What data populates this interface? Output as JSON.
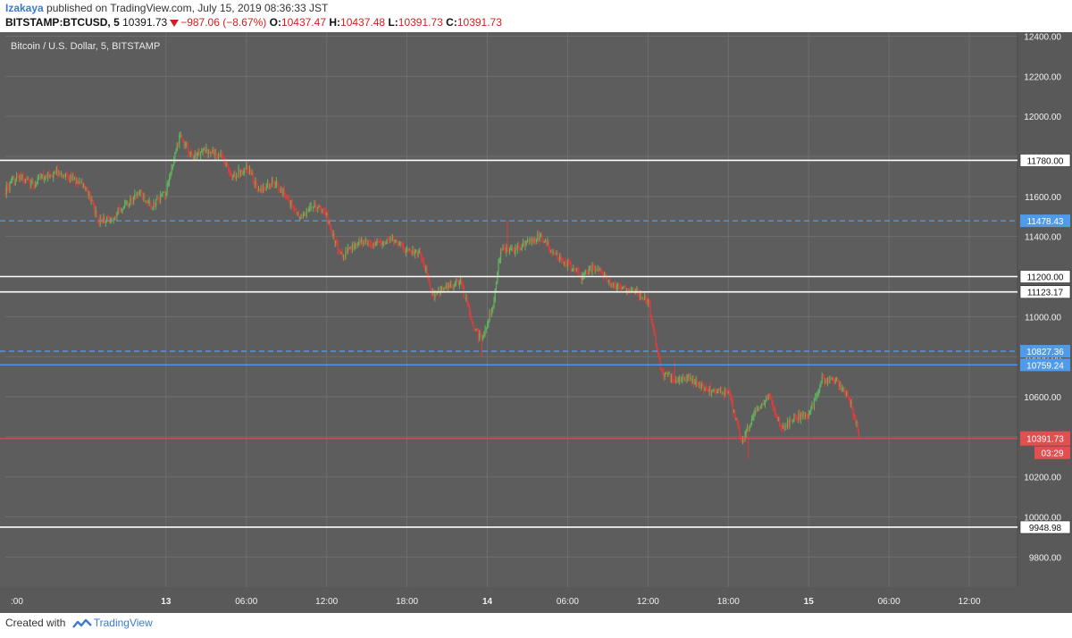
{
  "header": {
    "author": "Izakaya",
    "published_text": "published on TradingView.com, July 15, 2019 08:36:33 JST",
    "symbol": "BITSTAMP:BTCUSD, 5",
    "price": "10391.73",
    "change": "−987.06 (−8.67%)",
    "open_label": "O:",
    "open": "10437.47",
    "high_label": "H:",
    "high": "10437.48",
    "low_label": "L:",
    "low": "10391.73",
    "close_label": "C:",
    "close": "10391.73"
  },
  "footer": {
    "created_with": "Created with",
    "brand": "TradingView"
  },
  "colors": {
    "plot_bg": "#5d5d5d",
    "axis_bg": "#595959",
    "grid": "#6e6e6e",
    "up": "#5fb55f",
    "down": "#e03c3c",
    "axis_text": "#f2f2f2",
    "blue_line": "#4f9bea",
    "white_line": "#ffffff",
    "price_line": "#e05050"
  },
  "chart_data": {
    "type": "candlestick",
    "title": "Bitcoin / U.S. Dollar, 5, BITSTAMP",
    "ylim": [
      9650,
      12420
    ],
    "y_ticks": [
      12400,
      12200,
      12000,
      11800,
      11600,
      11400,
      11200,
      11000,
      10800,
      10600,
      10400,
      10200,
      10000,
      9800
    ],
    "y_tick_labels": [
      "12400.00",
      "12200.00",
      "12000.00",
      "11800.00",
      "11600.00",
      "11400.00",
      "11200.00",
      "11000.00",
      "10800.00",
      "10600.00",
      "10400.00",
      "10200.00",
      "10000.00",
      "9800.00"
    ],
    "x_ticks": [
      {
        "hours": 0,
        "label": ":00",
        "bold": false
      },
      {
        "hours": 12,
        "label": "13",
        "bold": true
      },
      {
        "hours": 18,
        "label": "06:00",
        "bold": false
      },
      {
        "hours": 24,
        "label": "12:00",
        "bold": false
      },
      {
        "hours": 30,
        "label": "18:00",
        "bold": false
      },
      {
        "hours": 36,
        "label": "14",
        "bold": true
      },
      {
        "hours": 42,
        "label": "06:00",
        "bold": false
      },
      {
        "hours": 48,
        "label": "12:00",
        "bold": false
      },
      {
        "hours": 54,
        "label": "18:00",
        "bold": false
      },
      {
        "hours": 60,
        "label": "15",
        "bold": true
      },
      {
        "hours": 66,
        "label": "06:00",
        "bold": false
      },
      {
        "hours": 72,
        "label": "12:00",
        "bold": false
      }
    ],
    "xlim_hours": [
      0,
      75.6
    ],
    "price_path": [
      [
        0,
        11630
      ],
      [
        1,
        11700
      ],
      [
        2,
        11660
      ],
      [
        3,
        11700
      ],
      [
        4,
        11720
      ],
      [
        5,
        11690
      ],
      [
        6,
        11640
      ],
      [
        7,
        11480
      ],
      [
        8,
        11500
      ],
      [
        9,
        11560
      ],
      [
        10,
        11620
      ],
      [
        11,
        11560
      ],
      [
        12,
        11620
      ],
      [
        13,
        11900
      ],
      [
        14,
        11800
      ],
      [
        15,
        11830
      ],
      [
        16,
        11810
      ],
      [
        17,
        11700
      ],
      [
        18,
        11750
      ],
      [
        19,
        11620
      ],
      [
        20,
        11680
      ],
      [
        21,
        11600
      ],
      [
        22,
        11490
      ],
      [
        23,
        11560
      ],
      [
        24,
        11500
      ],
      [
        25,
        11300
      ],
      [
        26,
        11350
      ],
      [
        27,
        11380
      ],
      [
        28,
        11360
      ],
      [
        29,
        11390
      ],
      [
        30,
        11330
      ],
      [
        31,
        11320
      ],
      [
        32,
        11100
      ],
      [
        33,
        11150
      ],
      [
        34,
        11170
      ],
      [
        35,
        10940
      ],
      [
        35.6,
        10880
      ],
      [
        36.4,
        11050
      ],
      [
        37,
        11340
      ],
      [
        38,
        11330
      ],
      [
        39,
        11380
      ],
      [
        40,
        11400
      ],
      [
        41,
        11320
      ],
      [
        42,
        11260
      ],
      [
        43,
        11200
      ],
      [
        44,
        11250
      ],
      [
        45,
        11180
      ],
      [
        46,
        11140
      ],
      [
        47,
        11130
      ],
      [
        48,
        11080
      ],
      [
        49,
        10720
      ],
      [
        50,
        10680
      ],
      [
        51,
        10700
      ],
      [
        52,
        10650
      ],
      [
        53,
        10630
      ],
      [
        54,
        10620
      ],
      [
        55,
        10380
      ],
      [
        56,
        10520
      ],
      [
        57,
        10600
      ],
      [
        58,
        10440
      ],
      [
        59,
        10500
      ],
      [
        60,
        10510
      ],
      [
        61,
        10690
      ],
      [
        62,
        10680
      ],
      [
        63,
        10600
      ],
      [
        63.8,
        10400
      ]
    ],
    "key_points": [
      [
        13,
        11920
      ],
      [
        35.6,
        10800
      ],
      [
        37.5,
        11480
      ],
      [
        50,
        10780
      ],
      [
        55.5,
        10290
      ]
    ],
    "last_price": 10391.73,
    "countdown": "03:29",
    "horizontal_lines": [
      {
        "value": 11780.0,
        "label": "11780.00",
        "style": "white"
      },
      {
        "value": 11478.43,
        "label": "11478.43",
        "style": "blue-dashed"
      },
      {
        "value": 11200.0,
        "label": "11200.00",
        "style": "white"
      },
      {
        "value": 11123.17,
        "label": "11123.17",
        "style": "white"
      },
      {
        "value": 10827.36,
        "label": "10827.36",
        "style": "blue-dashed"
      },
      {
        "value": 10759.24,
        "label": "10759.24",
        "style": "blue-solid"
      },
      {
        "value": 9948.98,
        "label": "9948.98",
        "style": "white"
      }
    ]
  }
}
